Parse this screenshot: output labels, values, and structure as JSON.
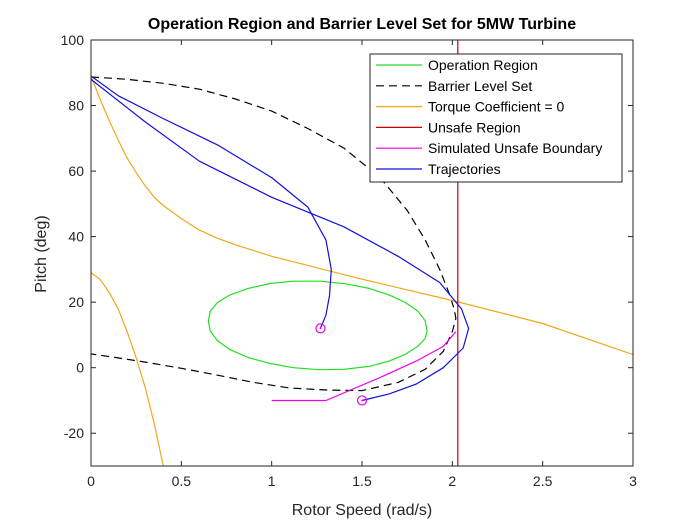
{
  "chart_data": {
    "type": "line",
    "title": "Operation Region and Barrier Level Set for 5MW Turbine",
    "xlabel": "Rotor Speed (rad/s)",
    "ylabel": "Pitch (deg)",
    "xlim": [
      0,
      3
    ],
    "ylim": [
      -30,
      100
    ],
    "xticks": [
      "0",
      "0.5",
      "1",
      "1.5",
      "2",
      "2.5",
      "3"
    ],
    "yticks": [
      "-20",
      "0",
      "20",
      "40",
      "60",
      "80",
      "100"
    ],
    "grid": false,
    "legend_position": "top-right",
    "colors": {
      "operation_region": "#22dd22",
      "barrier": "#000000",
      "torque": "#f0a818",
      "unsafe": "#cc0000",
      "simulated": "#ee00ee",
      "trajectories": "#1010dd"
    },
    "series": [
      {
        "name": "Operation Region",
        "style": "solid",
        "points": [
          [
            1.86,
            11.2
          ],
          [
            1.85,
            14.3
          ],
          [
            1.81,
            17.2
          ],
          [
            1.74,
            19.9
          ],
          [
            1.65,
            22.2
          ],
          [
            1.54,
            24.2
          ],
          [
            1.41,
            25.6
          ],
          [
            1.27,
            26.4
          ],
          [
            1.12,
            26.4
          ],
          [
            0.99,
            25.7
          ],
          [
            0.87,
            24.2
          ],
          [
            0.77,
            22.2
          ],
          [
            0.7,
            19.9
          ],
          [
            0.66,
            17.2
          ],
          [
            0.65,
            14.3
          ],
          [
            0.66,
            11.2
          ],
          [
            0.7,
            8.2
          ],
          [
            0.77,
            5.5
          ],
          [
            0.87,
            3.1
          ],
          [
            0.99,
            1.3
          ],
          [
            1.12,
            0.0
          ],
          [
            1.26,
            -0.6
          ],
          [
            1.4,
            -0.5
          ],
          [
            1.54,
            0.4
          ],
          [
            1.65,
            2.0
          ],
          [
            1.74,
            4.1
          ],
          [
            1.81,
            6.6
          ],
          [
            1.85,
            8.9
          ],
          [
            1.86,
            11.2
          ]
        ]
      },
      {
        "name": "Barrier Level Set",
        "style": "dashed",
        "points": [
          [
            0.0,
            88.7
          ],
          [
            0.2,
            88.0
          ],
          [
            0.4,
            86.8
          ],
          [
            0.6,
            85.0
          ],
          [
            0.8,
            82.0
          ],
          [
            1.0,
            78.3
          ],
          [
            1.2,
            73.0
          ],
          [
            1.4,
            67.0
          ],
          [
            1.6,
            58.0
          ],
          [
            1.75,
            48.0
          ],
          [
            1.85,
            39.0
          ],
          [
            1.93,
            30.0
          ],
          [
            1.98,
            23.0
          ],
          [
            2.01,
            18.0
          ],
          [
            2.02,
            15.0
          ],
          [
            2.0,
            11.0
          ],
          [
            1.95,
            5.0
          ],
          [
            1.85,
            -0.5
          ],
          [
            1.7,
            -4.5
          ],
          [
            1.5,
            -7.0
          ],
          [
            1.3,
            -6.8
          ],
          [
            1.1,
            -6.2
          ],
          [
            0.9,
            -4.5
          ],
          [
            0.7,
            -2.3
          ],
          [
            0.5,
            -0.2
          ],
          [
            0.3,
            1.7
          ],
          [
            0.15,
            3.0
          ],
          [
            0.0,
            4.2
          ]
        ]
      },
      {
        "name": "Torque Coefficient = 0",
        "style": "solid",
        "branches": [
          [
            [
              0.0,
              89.0
            ],
            [
              0.05,
              82.0
            ],
            [
              0.1,
              75.5
            ],
            [
              0.15,
              69.5
            ],
            [
              0.2,
              64.0
            ],
            [
              0.25,
              59.5
            ],
            [
              0.3,
              55.5
            ],
            [
              0.35,
              52.0
            ],
            [
              0.4,
              49.5
            ],
            [
              0.5,
              45.5
            ],
            [
              0.6,
              42.0
            ],
            [
              0.7,
              39.5
            ],
            [
              0.8,
              37.5
            ],
            [
              1.0,
              34.0
            ],
            [
              1.5,
              27.0
            ],
            [
              2.0,
              20.5
            ],
            [
              2.5,
              13.5
            ],
            [
              3.0,
              4.0
            ]
          ],
          [
            [
              0.0,
              29.0
            ],
            [
              0.05,
              27.0
            ],
            [
              0.1,
              23.0
            ],
            [
              0.15,
              18.0
            ],
            [
              0.2,
              11.0
            ],
            [
              0.25,
              3.0
            ],
            [
              0.3,
              -6.0
            ],
            [
              0.35,
              -17.0
            ],
            [
              0.4,
              -30.0
            ]
          ]
        ]
      },
      {
        "name": "Unsafe Region",
        "style": "solid",
        "points": [
          [
            2.03,
            -30
          ],
          [
            2.03,
            100
          ]
        ]
      },
      {
        "name": "Simulated Unsafe Boundary",
        "style": "solid",
        "points": [
          [
            1.0,
            -10.0
          ],
          [
            1.3,
            -10.0
          ],
          [
            1.6,
            -3.0
          ],
          [
            1.8,
            2.0
          ],
          [
            1.95,
            6.5
          ],
          [
            2.02,
            11.0
          ]
        ]
      },
      {
        "name": "Trajectories",
        "style": "solid",
        "branches": [
          [
            [
              0.0,
              89.0
            ],
            [
              0.15,
              83.0
            ],
            [
              0.4,
              76.0
            ],
            [
              0.7,
              68.0
            ],
            [
              1.0,
              58.0
            ],
            [
              1.2,
              49.0
            ],
            [
              1.3,
              39.0
            ],
            [
              1.33,
              30.0
            ],
            [
              1.32,
              22.0
            ],
            [
              1.3,
              16.0
            ],
            [
              1.27,
              12.0
            ]
          ],
          [
            [
              0.0,
              88.0
            ],
            [
              0.3,
              75.0
            ],
            [
              0.6,
              63.0
            ],
            [
              1.0,
              52.0
            ],
            [
              1.4,
              43.0
            ],
            [
              1.7,
              34.0
            ],
            [
              1.93,
              26.0
            ],
            [
              2.05,
              18.0
            ],
            [
              2.09,
              12.0
            ],
            [
              2.06,
              6.0
            ],
            [
              1.95,
              0.0
            ],
            [
              1.8,
              -5.0
            ],
            [
              1.65,
              -8.0
            ],
            [
              1.5,
              -10.0
            ]
          ]
        ]
      }
    ],
    "markers": [
      {
        "x": 1.27,
        "y": 12.0,
        "color": "#ee00ee"
      },
      {
        "x": 1.5,
        "y": -10.0,
        "color": "#ee00ee"
      }
    ]
  }
}
